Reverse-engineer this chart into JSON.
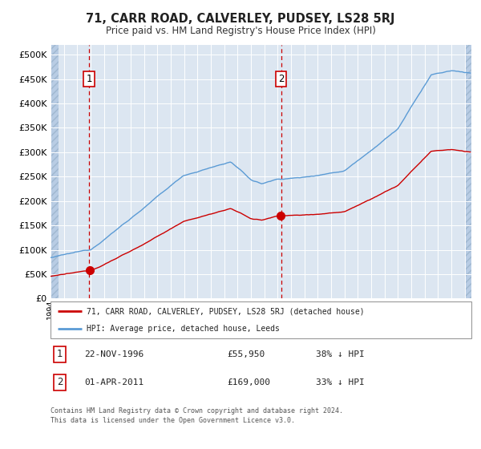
{
  "title": "71, CARR ROAD, CALVERLEY, PUDSEY, LS28 5RJ",
  "subtitle": "Price paid vs. HM Land Registry's House Price Index (HPI)",
  "legend_property": "71, CARR ROAD, CALVERLEY, PUDSEY, LS28 5RJ (detached house)",
  "legend_hpi": "HPI: Average price, detached house, Leeds",
  "footnote_line1": "Contains HM Land Registry data © Crown copyright and database right 2024.",
  "footnote_line2": "This data is licensed under the Open Government Licence v3.0.",
  "sale1_date": "22-NOV-1996",
  "sale1_price": "£55,950",
  "sale1_hpi": "38% ↓ HPI",
  "sale1_year": 1996.89,
  "sale1_value": 55950,
  "sale2_date": "01-APR-2011",
  "sale2_price": "£169,000",
  "sale2_hpi": "33% ↓ HPI",
  "sale2_year": 2011.25,
  "sale2_value": 169000,
  "hpi_color": "#5b9bd5",
  "property_color": "#cc0000",
  "background_color": "#dce6f1",
  "hatch_bg_color": "#b8cce4",
  "grid_color": "#ffffff",
  "ylim_min": 0,
  "ylim_max": 520000,
  "xmin": 1994.0,
  "xmax": 2025.5
}
